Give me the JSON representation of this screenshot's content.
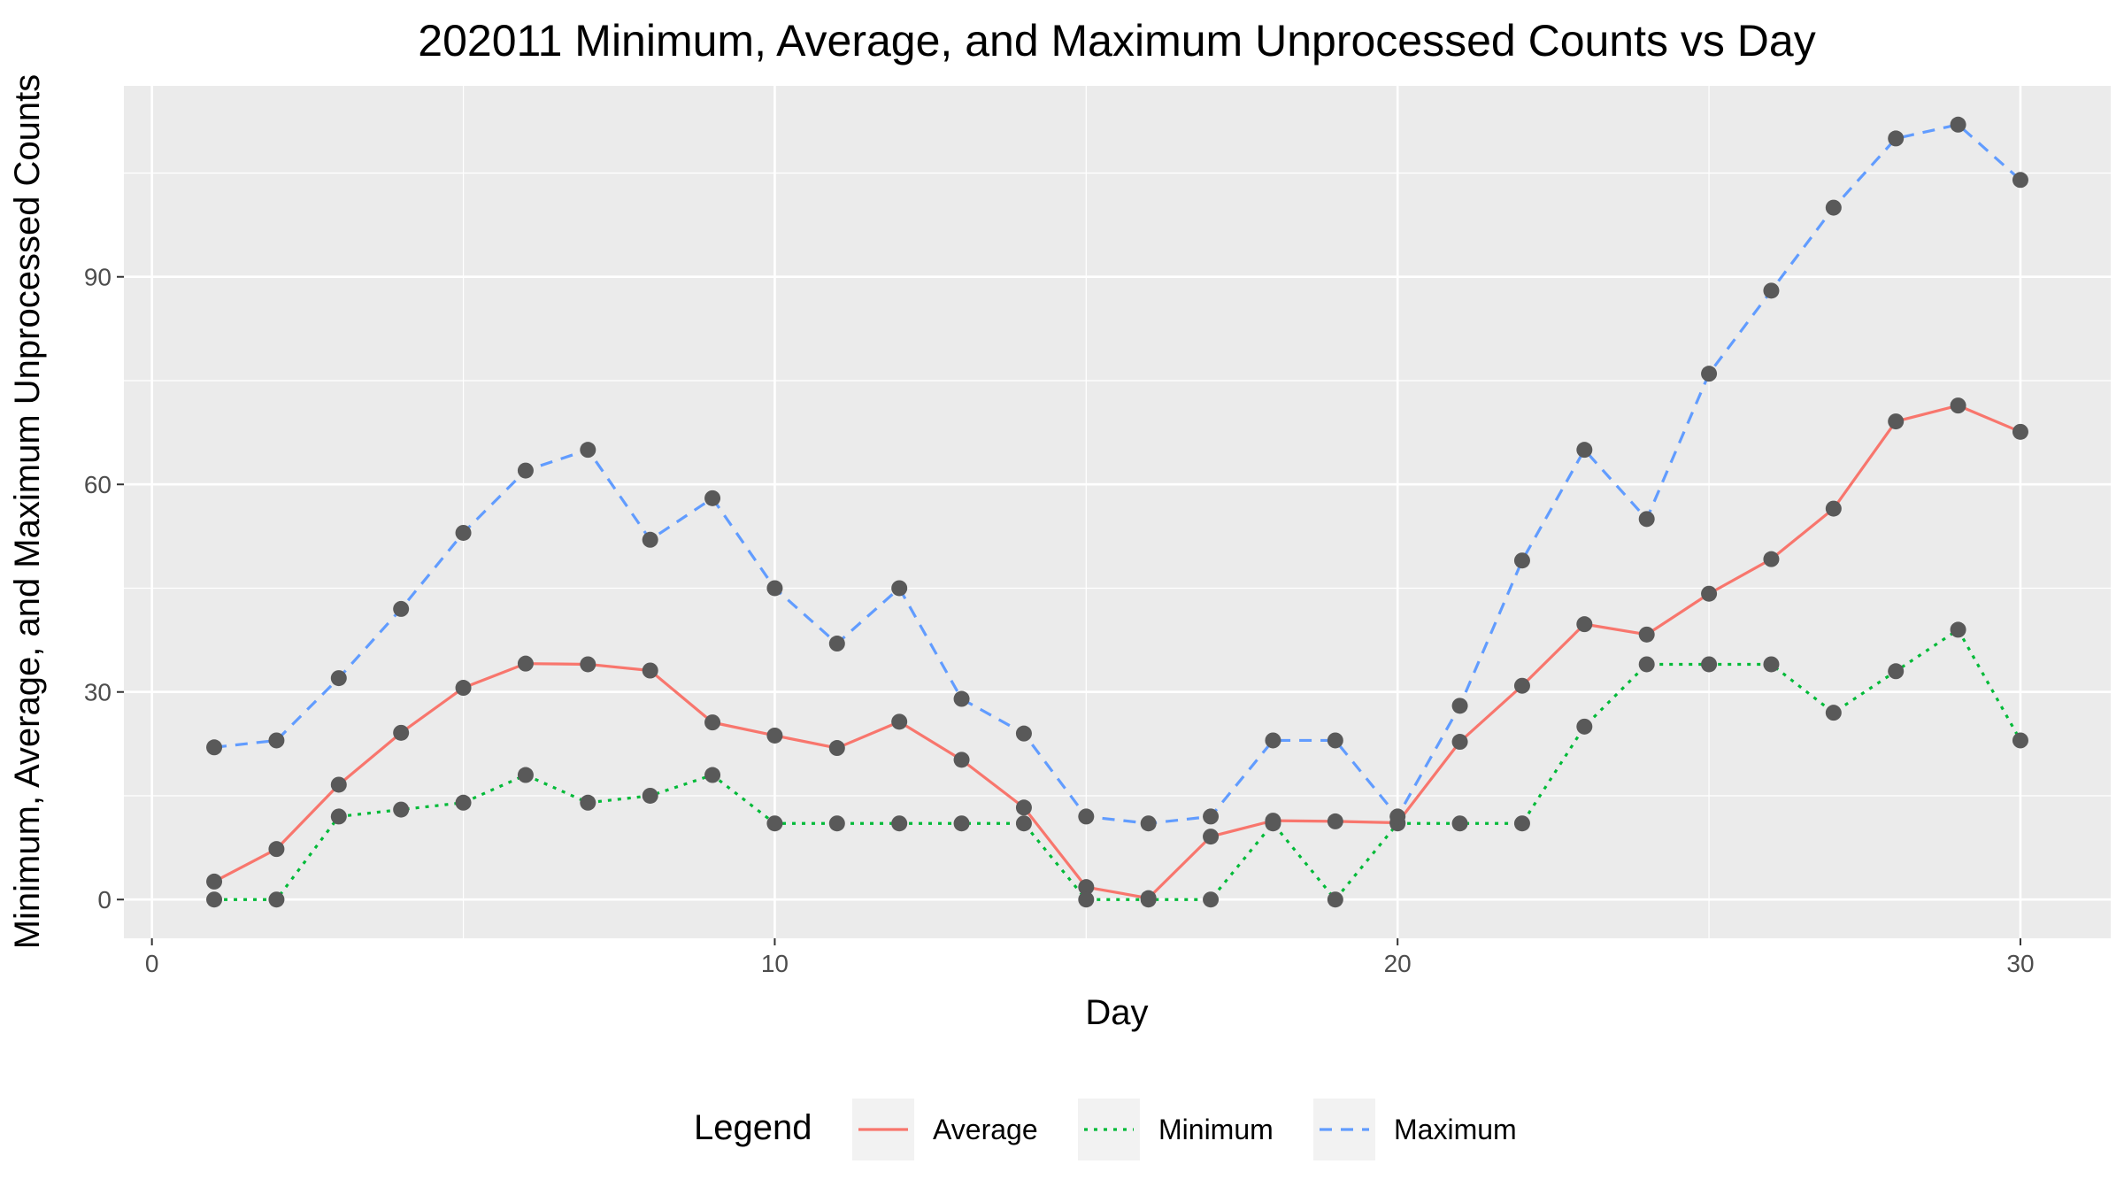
{
  "chart_data": {
    "type": "line",
    "title": "202011 Minimum, Average, and Maximum Unprocessed Counts vs Day",
    "xlabel": "Day",
    "ylabel": "Minimum, Average, and Maximum Unprocessed Counts",
    "x": [
      1,
      2,
      3,
      4,
      5,
      6,
      7,
      8,
      9,
      10,
      11,
      12,
      13,
      14,
      15,
      16,
      17,
      18,
      19,
      20,
      21,
      22,
      23,
      24,
      25,
      26,
      27,
      28,
      29,
      30
    ],
    "xlim": [
      -0.45,
      31.45
    ],
    "ylim": [
      -5.6,
      117.6
    ],
    "xticks": [
      0,
      10,
      20,
      30
    ],
    "xtick_labels": [
      "0",
      "10",
      "20",
      "30"
    ],
    "yticks": [
      0,
      30,
      60,
      90
    ],
    "ytick_labels": [
      "0",
      "30",
      "60",
      "90"
    ],
    "grid": true,
    "legend_position": "bottom",
    "legend_title": "Legend",
    "series": [
      {
        "name": "Average",
        "color": "#F8766D",
        "linetype": "solid",
        "values": [
          2.6,
          7.3,
          16.6,
          24.1,
          30.6,
          34.1,
          34.0,
          33.1,
          25.6,
          23.7,
          21.9,
          25.7,
          20.2,
          13.3,
          1.8,
          0.2,
          9.1,
          11.4,
          11.3,
          11.1,
          22.8,
          30.9,
          39.8,
          38.3,
          44.2,
          49.2,
          56.5,
          69.1,
          71.4,
          67.6
        ]
      },
      {
        "name": "Minimum",
        "color": "#00BA38",
        "linetype": "dotted",
        "values": [
          0,
          0,
          12,
          13,
          14,
          18,
          14,
          15,
          18,
          11,
          11,
          11,
          11,
          11,
          0,
          0,
          0,
          11,
          0,
          11,
          11,
          11,
          25,
          34,
          34,
          34,
          27,
          33,
          39,
          23
        ]
      },
      {
        "name": "Maximum",
        "color": "#619CFF",
        "linetype": "dashed",
        "values": [
          22,
          23,
          32,
          42,
          53,
          62,
          65,
          52,
          58,
          45,
          37,
          45,
          29,
          24,
          12,
          11,
          12,
          23,
          23,
          12,
          28,
          49,
          65,
          55,
          76,
          88,
          100,
          110,
          112,
          104
        ]
      }
    ],
    "point_color": "#595959"
  }
}
